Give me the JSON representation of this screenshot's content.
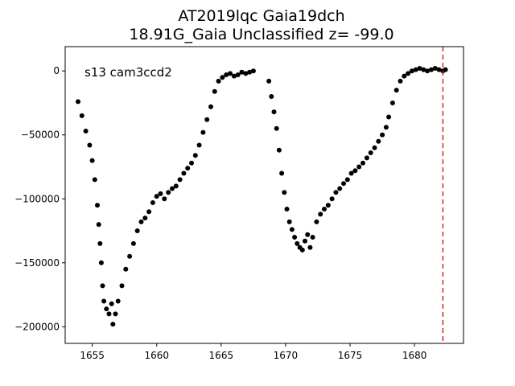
{
  "chart_data": {
    "type": "scatter",
    "title_line1": "AT2019lqc  Gaia19dch",
    "title_line2": "18.91G_Gaia Unclassified z= -99.0",
    "annotation": "s13 cam3ccd2",
    "xlabel": "",
    "ylabel": "",
    "xlim": [
      1652.9,
      1683.8
    ],
    "ylim": [
      -213000,
      19000
    ],
    "x_ticks": [
      1655,
      1660,
      1665,
      1670,
      1675,
      1680
    ],
    "y_ticks": [
      0,
      -50000,
      -100000,
      -150000,
      -200000
    ],
    "y_tick_labels": [
      "0",
      "−50000",
      "−100000",
      "−150000",
      "−200000"
    ],
    "grid": false,
    "marker_color": "#000000",
    "vline": {
      "x": 1682.2,
      "color": "#d62728",
      "style": "dashed"
    },
    "series": [
      {
        "points": [
          [
            1653.9,
            -24000
          ],
          [
            1654.2,
            -35000
          ],
          [
            1654.5,
            -47000
          ],
          [
            1654.8,
            -58000
          ],
          [
            1655.0,
            -70000
          ],
          [
            1655.2,
            -85000
          ],
          [
            1655.4,
            -105000
          ],
          [
            1655.5,
            -120000
          ],
          [
            1655.6,
            -135000
          ],
          [
            1655.7,
            -150000
          ],
          [
            1655.8,
            -168000
          ],
          [
            1655.9,
            -180000
          ],
          [
            1656.1,
            -186000
          ],
          [
            1656.3,
            -190000
          ],
          [
            1656.5,
            -182000
          ],
          [
            1656.6,
            -198000
          ],
          [
            1656.8,
            -190000
          ],
          [
            1657.0,
            -180000
          ],
          [
            1657.3,
            -168000
          ],
          [
            1657.6,
            -155000
          ],
          [
            1657.9,
            -145000
          ],
          [
            1658.2,
            -135000
          ],
          [
            1658.5,
            -125000
          ],
          [
            1658.8,
            -118000
          ],
          [
            1659.1,
            -115000
          ],
          [
            1659.4,
            -110000
          ],
          [
            1659.7,
            -103000
          ],
          [
            1660.0,
            -98000
          ],
          [
            1660.3,
            -96000
          ],
          [
            1660.6,
            -100000
          ],
          [
            1660.9,
            -95000
          ],
          [
            1661.2,
            -92000
          ],
          [
            1661.5,
            -90000
          ],
          [
            1661.8,
            -85000
          ],
          [
            1662.1,
            -80000
          ],
          [
            1662.4,
            -76000
          ],
          [
            1662.7,
            -72000
          ],
          [
            1663.0,
            -66000
          ],
          [
            1663.3,
            -58000
          ],
          [
            1663.6,
            -48000
          ],
          [
            1663.9,
            -38000
          ],
          [
            1664.2,
            -28000
          ],
          [
            1664.5,
            -16000
          ],
          [
            1664.8,
            -8000
          ],
          [
            1665.1,
            -5000
          ],
          [
            1665.4,
            -3000
          ],
          [
            1665.7,
            -2000
          ],
          [
            1666.0,
            -4000
          ],
          [
            1666.3,
            -3000
          ],
          [
            1666.6,
            -1000
          ],
          [
            1666.9,
            -2000
          ],
          [
            1667.2,
            -1000
          ],
          [
            1667.5,
            0
          ],
          [
            1668.7,
            -8000
          ],
          [
            1668.9,
            -20000
          ],
          [
            1669.1,
            -32000
          ],
          [
            1669.3,
            -45000
          ],
          [
            1669.5,
            -62000
          ],
          [
            1669.7,
            -80000
          ],
          [
            1669.9,
            -95000
          ],
          [
            1670.1,
            -108000
          ],
          [
            1670.3,
            -118000
          ],
          [
            1670.5,
            -124000
          ],
          [
            1670.7,
            -130000
          ],
          [
            1670.9,
            -135000
          ],
          [
            1671.1,
            -138000
          ],
          [
            1671.3,
            -140000
          ],
          [
            1671.5,
            -133000
          ],
          [
            1671.7,
            -128000
          ],
          [
            1671.9,
            -138000
          ],
          [
            1672.1,
            -130000
          ],
          [
            1672.4,
            -118000
          ],
          [
            1672.7,
            -112000
          ],
          [
            1673.0,
            -108000
          ],
          [
            1673.3,
            -105000
          ],
          [
            1673.6,
            -100000
          ],
          [
            1673.9,
            -95000
          ],
          [
            1674.2,
            -92000
          ],
          [
            1674.5,
            -88000
          ],
          [
            1674.8,
            -85000
          ],
          [
            1675.1,
            -80000
          ],
          [
            1675.4,
            -78000
          ],
          [
            1675.7,
            -75000
          ],
          [
            1676.0,
            -72000
          ],
          [
            1676.3,
            -68000
          ],
          [
            1676.6,
            -64000
          ],
          [
            1676.9,
            -60000
          ],
          [
            1677.2,
            -55000
          ],
          [
            1677.5,
            -50000
          ],
          [
            1677.8,
            -44000
          ],
          [
            1678.0,
            -36000
          ],
          [
            1678.3,
            -25000
          ],
          [
            1678.6,
            -15000
          ],
          [
            1678.9,
            -8000
          ],
          [
            1679.2,
            -4000
          ],
          [
            1679.5,
            -2000
          ],
          [
            1679.8,
            0
          ],
          [
            1680.1,
            1000
          ],
          [
            1680.4,
            2000
          ],
          [
            1680.7,
            1000
          ],
          [
            1681.0,
            0
          ],
          [
            1681.3,
            1000
          ],
          [
            1681.6,
            2000
          ],
          [
            1681.9,
            1000
          ],
          [
            1682.2,
            0
          ],
          [
            1682.4,
            1000
          ]
        ]
      }
    ]
  }
}
